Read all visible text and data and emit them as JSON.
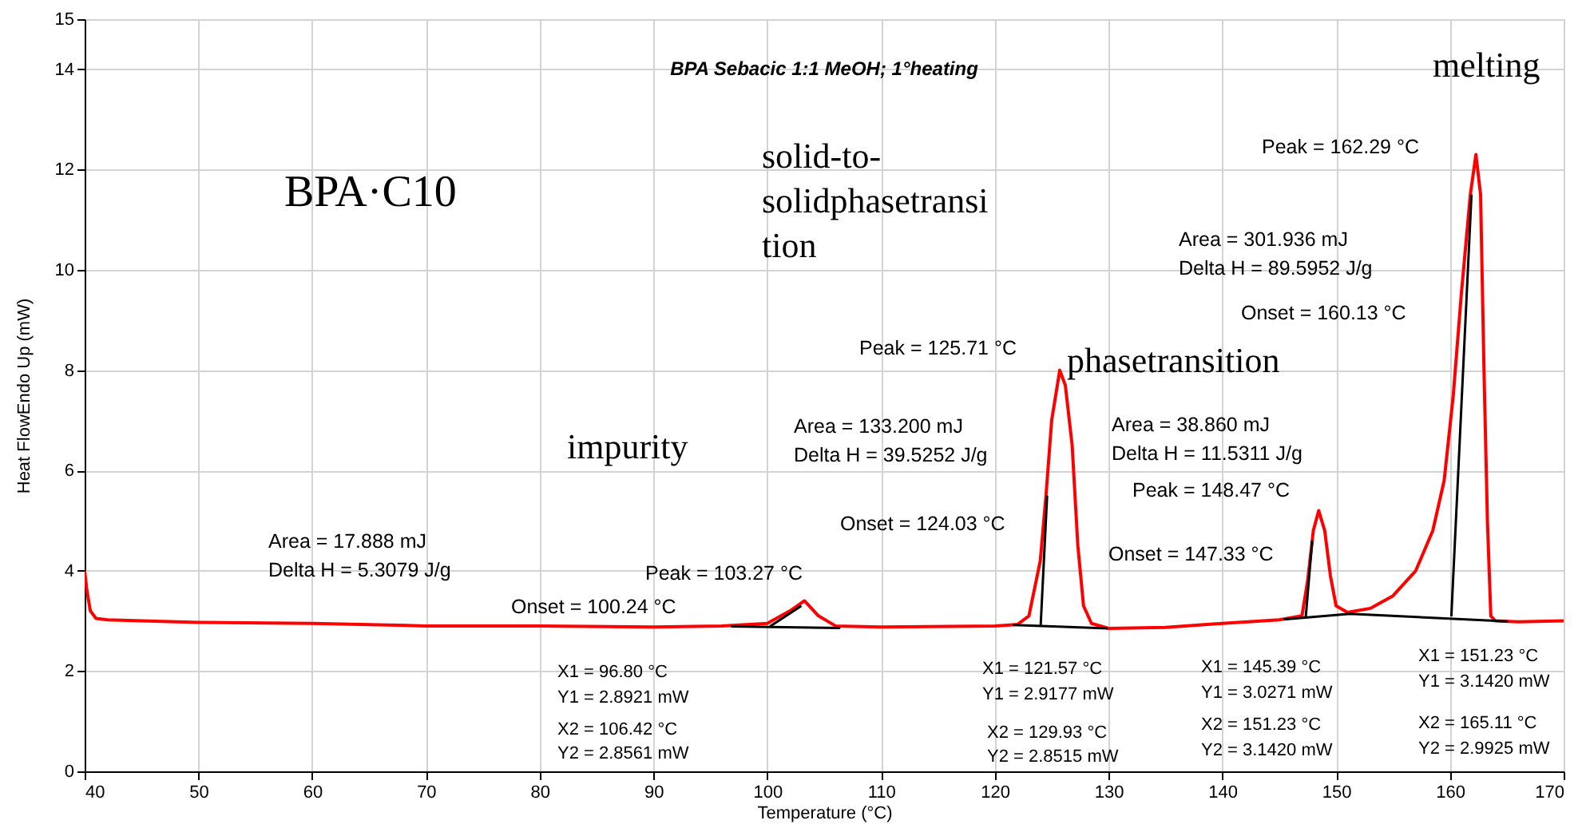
{
  "chart_data": {
    "type": "line",
    "title": "BPA Sebacic 1:1 MeOH; 1°heating",
    "xlabel": "Temperature (°C)",
    "ylabel": "Heat FlowEndo Up (mW)",
    "xlim": [
      40,
      170
    ],
    "xticks": [
      40,
      50,
      60,
      70,
      80,
      90,
      100,
      110,
      120,
      130,
      140,
      150,
      160,
      170
    ],
    "ylim": [
      0,
      15
    ],
    "yticks": [
      0,
      2,
      4,
      6,
      8,
      10,
      12,
      14,
      15
    ],
    "grid": true,
    "series": [
      {
        "color": "#ff0000",
        "x": [
          40,
          40.2,
          40.5,
          41,
          42,
          45,
          50,
          60,
          70,
          80,
          90,
          96,
          100,
          102,
          103.27,
          104.5,
          106,
          110,
          120,
          122,
          123,
          124,
          124.5,
          125,
          125.71,
          126.2,
          126.8,
          127.3,
          127.8,
          128.5,
          130,
          135,
          140,
          145,
          147,
          147.5,
          148,
          148.47,
          149,
          149.5,
          150,
          151,
          153,
          155,
          157,
          158.5,
          159.5,
          160.3,
          161,
          161.8,
          162.29,
          162.7,
          163,
          163.3,
          163.6,
          164,
          166,
          170
        ],
        "values": [
          4.0,
          3.6,
          3.2,
          3.05,
          3.02,
          3.0,
          2.97,
          2.95,
          2.9,
          2.9,
          2.88,
          2.9,
          2.95,
          3.2,
          3.4,
          3.1,
          2.9,
          2.88,
          2.9,
          2.93,
          3.1,
          4.2,
          5.5,
          7.0,
          8.0,
          7.7,
          6.5,
          4.5,
          3.3,
          2.95,
          2.85,
          2.87,
          2.95,
          3.02,
          3.1,
          3.8,
          4.8,
          5.2,
          4.8,
          3.9,
          3.3,
          3.17,
          3.25,
          3.5,
          4.0,
          4.8,
          5.8,
          7.5,
          9.5,
          11.5,
          12.3,
          11.5,
          8.0,
          5.0,
          3.1,
          3.0,
          2.98,
          3.0
        ]
      },
      {
        "color": "#000000",
        "x": [
          96.8,
          106.42
        ],
        "values": [
          2.89,
          2.86
        ]
      },
      {
        "color": "#000000",
        "x": [
          100.24,
          103.0
        ],
        "values": [
          2.89,
          3.3
        ]
      },
      {
        "color": "#000000",
        "x": [
          121.57,
          129.93
        ],
        "values": [
          2.92,
          2.85
        ]
      },
      {
        "color": "#000000",
        "x": [
          124.03,
          124.6
        ],
        "values": [
          2.9,
          5.5
        ]
      },
      {
        "color": "#000000",
        "x": [
          145.39,
          151.23,
          165.11
        ],
        "values": [
          3.03,
          3.14,
          2.99
        ]
      },
      {
        "color": "#000000",
        "x": [
          147.33,
          147.9
        ],
        "values": [
          3.07,
          4.6
        ]
      },
      {
        "color": "#000000",
        "x": [
          160.13,
          161.9
        ],
        "values": [
          3.09,
          11.5
        ]
      }
    ],
    "annotations": [
      "BPA·C10",
      "impurity",
      "solid-to-",
      "solidphasetransi",
      "tion",
      "phasetransition",
      "melting",
      "Area = 17.888 mJ",
      "Delta H = 5.3079 J/g",
      "Peak = 103.27 °C",
      "Onset = 100.24 °C",
      "Peak = 125.71 °C",
      "Area = 133.200 mJ",
      "Delta H = 39.5252 J/g",
      "Onset = 124.03 °C",
      "Area = 38.860 mJ",
      "Delta H = 11.5311 J/g",
      "Peak = 148.47 °C",
      "Onset = 147.33 °C",
      "Peak = 162.29 °C",
      "Area = 301.936 mJ",
      "Delta H = 89.5952 J/g",
      "Onset = 160.13 °C",
      "X1 = 96.80 °C",
      "Y1 = 2.8921 mW",
      "X2 = 106.42 °C",
      "Y2 = 2.8561 mW",
      "X1 = 121.57 °C",
      "Y1 = 2.9177 mW",
      "X2 = 129.93 °C",
      "Y2 = 2.8515 mW",
      "X1 = 145.39 °C",
      "Y1 = 3.0271 mW",
      "X2 = 151.23 °C",
      "Y2 = 3.1420 mW",
      "X1 = 151.23 °C",
      "Y1 = 3.1420 mW",
      "X2 = 165.11 °C",
      "Y2 = 2.9925 mW"
    ]
  }
}
